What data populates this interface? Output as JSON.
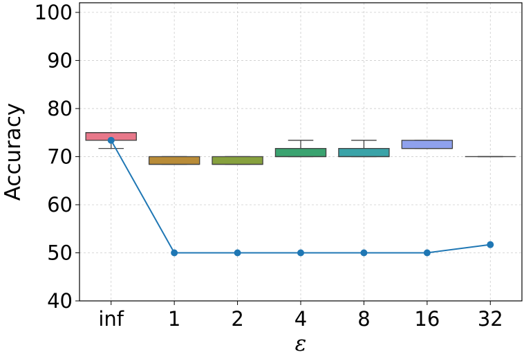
{
  "chart_data": {
    "type": "box",
    "xlabel": "ε",
    "ylabel": "Accuracy",
    "categories": [
      "inf",
      "1",
      "2",
      "4",
      "8",
      "16",
      "32"
    ],
    "yticks": [
      40,
      50,
      60,
      70,
      80,
      90,
      100
    ],
    "ylim": [
      40,
      102
    ],
    "grid": true,
    "boxes": [
      {
        "category": "inf",
        "q1": 73.4,
        "median": 75.0,
        "q3": 75.0,
        "whisker_low": 71.7,
        "whisker_high": 75.0,
        "color": "#e8788a"
      },
      {
        "category": "1",
        "q1": 68.4,
        "median": 68.4,
        "q3": 70.0,
        "whisker_low": 68.4,
        "whisker_high": 70.0,
        "color": "#b98c38"
      },
      {
        "category": "2",
        "q1": 68.4,
        "median": 68.4,
        "q3": 70.0,
        "whisker_low": 68.4,
        "whisker_high": 70.0,
        "color": "#87a13e"
      },
      {
        "category": "4",
        "q1": 70.0,
        "median": 70.0,
        "q3": 71.7,
        "whisker_low": 70.0,
        "whisker_high": 73.4,
        "color": "#3aa370"
      },
      {
        "category": "8",
        "q1": 70.0,
        "median": 70.0,
        "q3": 71.7,
        "whisker_low": 70.0,
        "whisker_high": 73.4,
        "color": "#3aa3a8"
      },
      {
        "category": "16",
        "q1": 71.7,
        "median": 71.7,
        "q3": 73.4,
        "whisker_low": 71.7,
        "whisker_high": 73.4,
        "color": "#8fa1ed"
      },
      {
        "category": "32",
        "q1": 70.0,
        "median": 70.0,
        "q3": 70.0,
        "whisker_low": 70.0,
        "whisker_high": 70.0,
        "color": "#e37cc8"
      }
    ],
    "line": {
      "color": "#1f77b4",
      "values": [
        73.4,
        50.0,
        50.0,
        50.0,
        50.0,
        50.0,
        51.7
      ]
    }
  }
}
